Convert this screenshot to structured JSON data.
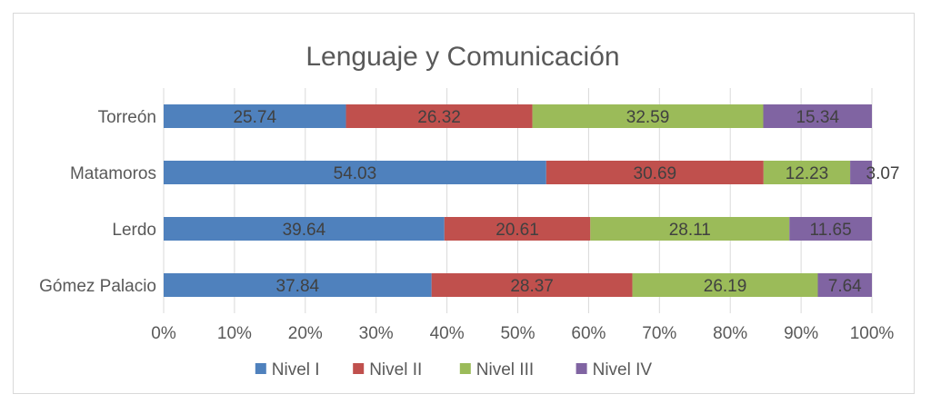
{
  "chart_data": {
    "type": "bar",
    "orientation": "horizontal",
    "stacking": "percent",
    "title": "Lenguaje y Comunicación",
    "categories": [
      "Gómez Palacio",
      "Lerdo",
      "Matamoros",
      "Torreón"
    ],
    "series": [
      {
        "name": "Nivel I",
        "color": "#4f81bd",
        "values": [
          37.84,
          39.64,
          54.03,
          25.74
        ]
      },
      {
        "name": "Nivel II",
        "color": "#c0504d",
        "values": [
          28.37,
          20.61,
          30.69,
          26.32
        ]
      },
      {
        "name": "Nivel III",
        "color": "#9bbb59",
        "values": [
          26.19,
          28.11,
          12.23,
          32.59
        ]
      },
      {
        "name": "Nivel IV",
        "color": "#8064a2",
        "values": [
          7.64,
          11.65,
          3.07,
          15.34
        ]
      }
    ],
    "x_ticks": [
      "0%",
      "10%",
      "20%",
      "30%",
      "40%",
      "50%",
      "60%",
      "70%",
      "80%",
      "90%",
      "100%"
    ],
    "xlim": [
      0,
      100
    ],
    "grid": true,
    "legend_position": "bottom"
  }
}
